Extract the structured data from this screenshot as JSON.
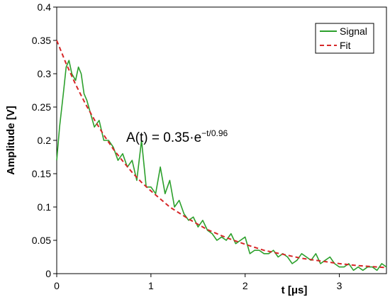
{
  "chart_data": {
    "type": "line",
    "title": "",
    "xlabel": "t [μs]",
    "ylabel": "Amplitude [V]",
    "xlim": [
      0,
      3.5
    ],
    "ylim": [
      0,
      0.4
    ],
    "x_ticks": [
      "0",
      "1",
      "2",
      "3"
    ],
    "y_ticks": [
      "0",
      "0.05",
      "0.1",
      "0.15",
      "0.2",
      "0.25",
      "0.3",
      "0.35",
      "0.4"
    ],
    "grid": false,
    "legend_position": "top-right",
    "annotation": {
      "base": "A(t) = 0.35·e",
      "exponent": "−t/0.96"
    },
    "series": [
      {
        "name": "Signal",
        "style": "solid",
        "color": "#2ca02c",
        "x": [
          0.0,
          0.03,
          0.07,
          0.1,
          0.13,
          0.16,
          0.2,
          0.23,
          0.26,
          0.29,
          0.32,
          0.36,
          0.4,
          0.45,
          0.5,
          0.55,
          0.6,
          0.65,
          0.7,
          0.75,
          0.8,
          0.85,
          0.9,
          0.95,
          1.0,
          1.05,
          1.1,
          1.15,
          1.2,
          1.25,
          1.3,
          1.35,
          1.4,
          1.45,
          1.5,
          1.55,
          1.6,
          1.65,
          1.7,
          1.75,
          1.8,
          1.85,
          1.9,
          1.95,
          2.0,
          2.05,
          2.1,
          2.15,
          2.2,
          2.25,
          2.3,
          2.35,
          2.4,
          2.45,
          2.5,
          2.55,
          2.6,
          2.65,
          2.7,
          2.75,
          2.8,
          2.85,
          2.9,
          2.95,
          3.0,
          3.05,
          3.1,
          3.15,
          3.2,
          3.25,
          3.3,
          3.35,
          3.4,
          3.45,
          3.5
        ],
        "y": [
          0.17,
          0.22,
          0.27,
          0.31,
          0.32,
          0.3,
          0.29,
          0.31,
          0.3,
          0.27,
          0.26,
          0.24,
          0.22,
          0.23,
          0.2,
          0.2,
          0.19,
          0.17,
          0.18,
          0.16,
          0.17,
          0.14,
          0.2,
          0.13,
          0.13,
          0.12,
          0.16,
          0.12,
          0.14,
          0.1,
          0.11,
          0.09,
          0.08,
          0.085,
          0.07,
          0.08,
          0.065,
          0.06,
          0.05,
          0.055,
          0.05,
          0.06,
          0.045,
          0.05,
          0.055,
          0.03,
          0.035,
          0.035,
          0.03,
          0.03,
          0.035,
          0.025,
          0.03,
          0.025,
          0.015,
          0.02,
          0.03,
          0.025,
          0.02,
          0.03,
          0.015,
          0.02,
          0.025,
          0.015,
          0.01,
          0.01,
          0.015,
          0.005,
          0.01,
          0.005,
          0.01,
          0.01,
          0.005,
          0.015,
          0.01
        ]
      },
      {
        "name": "Fit",
        "style": "dashed",
        "color": "#d62728",
        "x": [
          0.0,
          0.1,
          0.2,
          0.3,
          0.4,
          0.5,
          0.6,
          0.7,
          0.8,
          0.9,
          1.0,
          1.2,
          1.4,
          1.6,
          1.8,
          2.0,
          2.2,
          2.4,
          2.6,
          2.8,
          3.0,
          3.2,
          3.4,
          3.5
        ],
        "y": [
          0.35,
          0.315,
          0.284,
          0.256,
          0.231,
          0.208,
          0.187,
          0.169,
          0.152,
          0.137,
          0.124,
          0.1,
          0.082,
          0.066,
          0.054,
          0.044,
          0.035,
          0.029,
          0.023,
          0.019,
          0.015,
          0.012,
          0.01,
          0.009
        ]
      }
    ]
  }
}
